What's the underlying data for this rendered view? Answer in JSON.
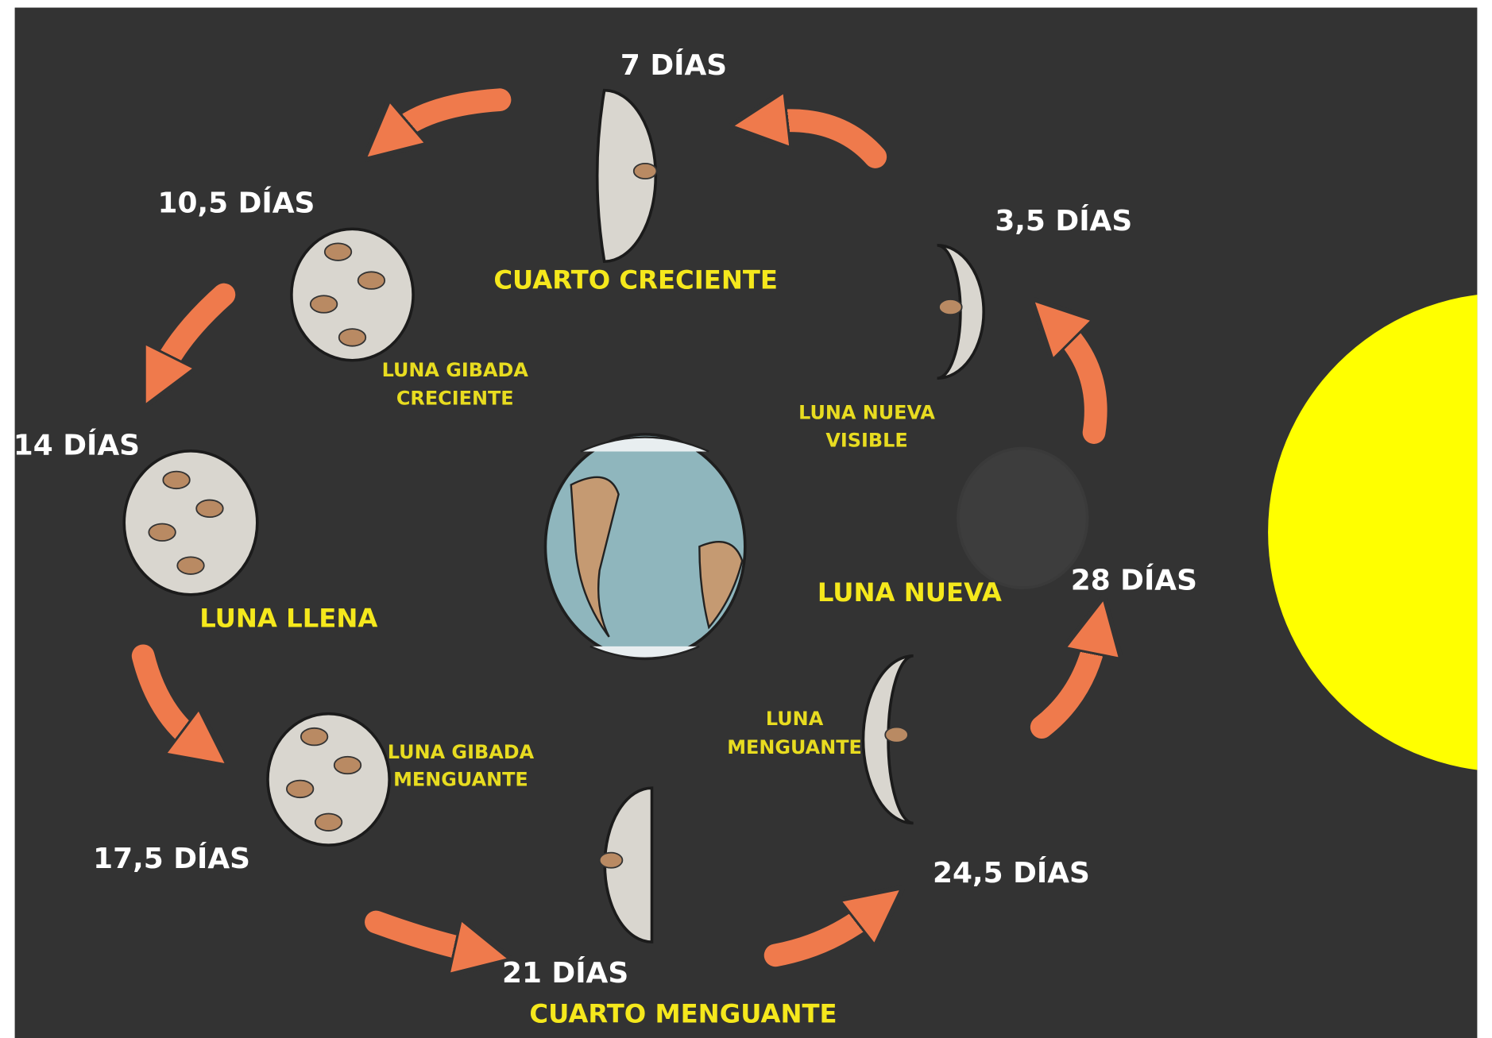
{
  "phases": [
    {
      "days": "28 DÍAS",
      "name": [
        "LUNA NUEVA"
      ]
    },
    {
      "days": "3,5 DÍAS",
      "name": [
        "LUNA NUEVA",
        "VISIBLE"
      ]
    },
    {
      "days": "7 DÍAS",
      "name": [
        "CUARTO CRECIENTE"
      ]
    },
    {
      "days": "10,5 DÍAS",
      "name": [
        "LUNA GIBADA",
        "CRECIENTE"
      ]
    },
    {
      "days": "14 DÍAS",
      "name": [
        "LUNA LLENA"
      ]
    },
    {
      "days": "17,5 DÍAS",
      "name": [
        "LUNA GIBADA",
        "MENGUANTE"
      ]
    },
    {
      "days": "21 DÍAS",
      "name": [
        "CUARTO MENGUANTE"
      ]
    },
    {
      "days": "24,5 DÍAS",
      "name": [
        "LUNA",
        "MENGUANTE"
      ]
    }
  ]
}
